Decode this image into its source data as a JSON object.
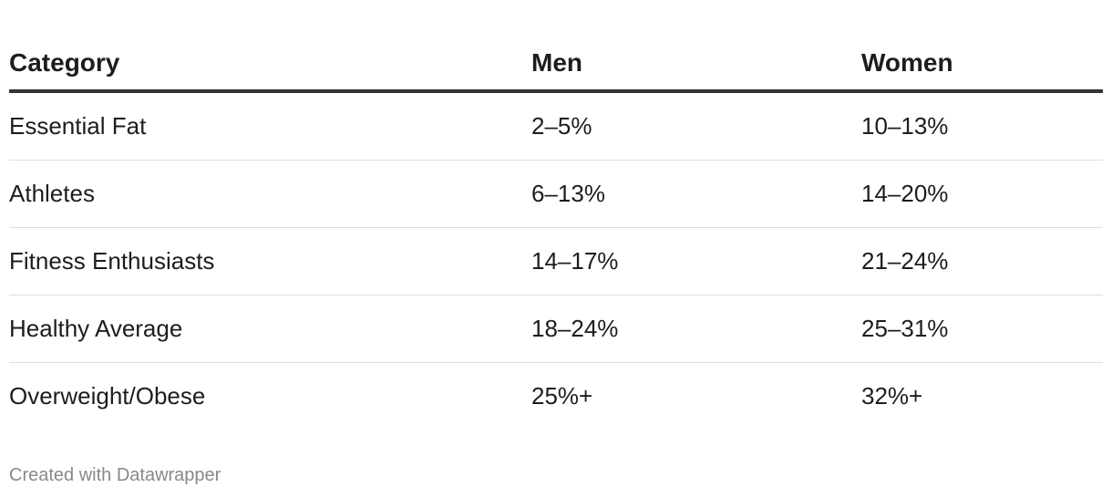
{
  "table": {
    "header": [
      "Category",
      "Men",
      "Women"
    ],
    "rows": [
      [
        "Essential Fat",
        "2–5%",
        "10–13%"
      ],
      [
        "Athletes",
        "6–13%",
        "14–20%"
      ],
      [
        "Fitness Enthusiasts",
        "14–17%",
        "21–24%"
      ],
      [
        "Healthy Average",
        "18–24%",
        "25–31%"
      ],
      [
        "Overweight/Obese",
        "25%+",
        "32%+"
      ]
    ]
  },
  "footer": "Created with Datawrapper"
}
